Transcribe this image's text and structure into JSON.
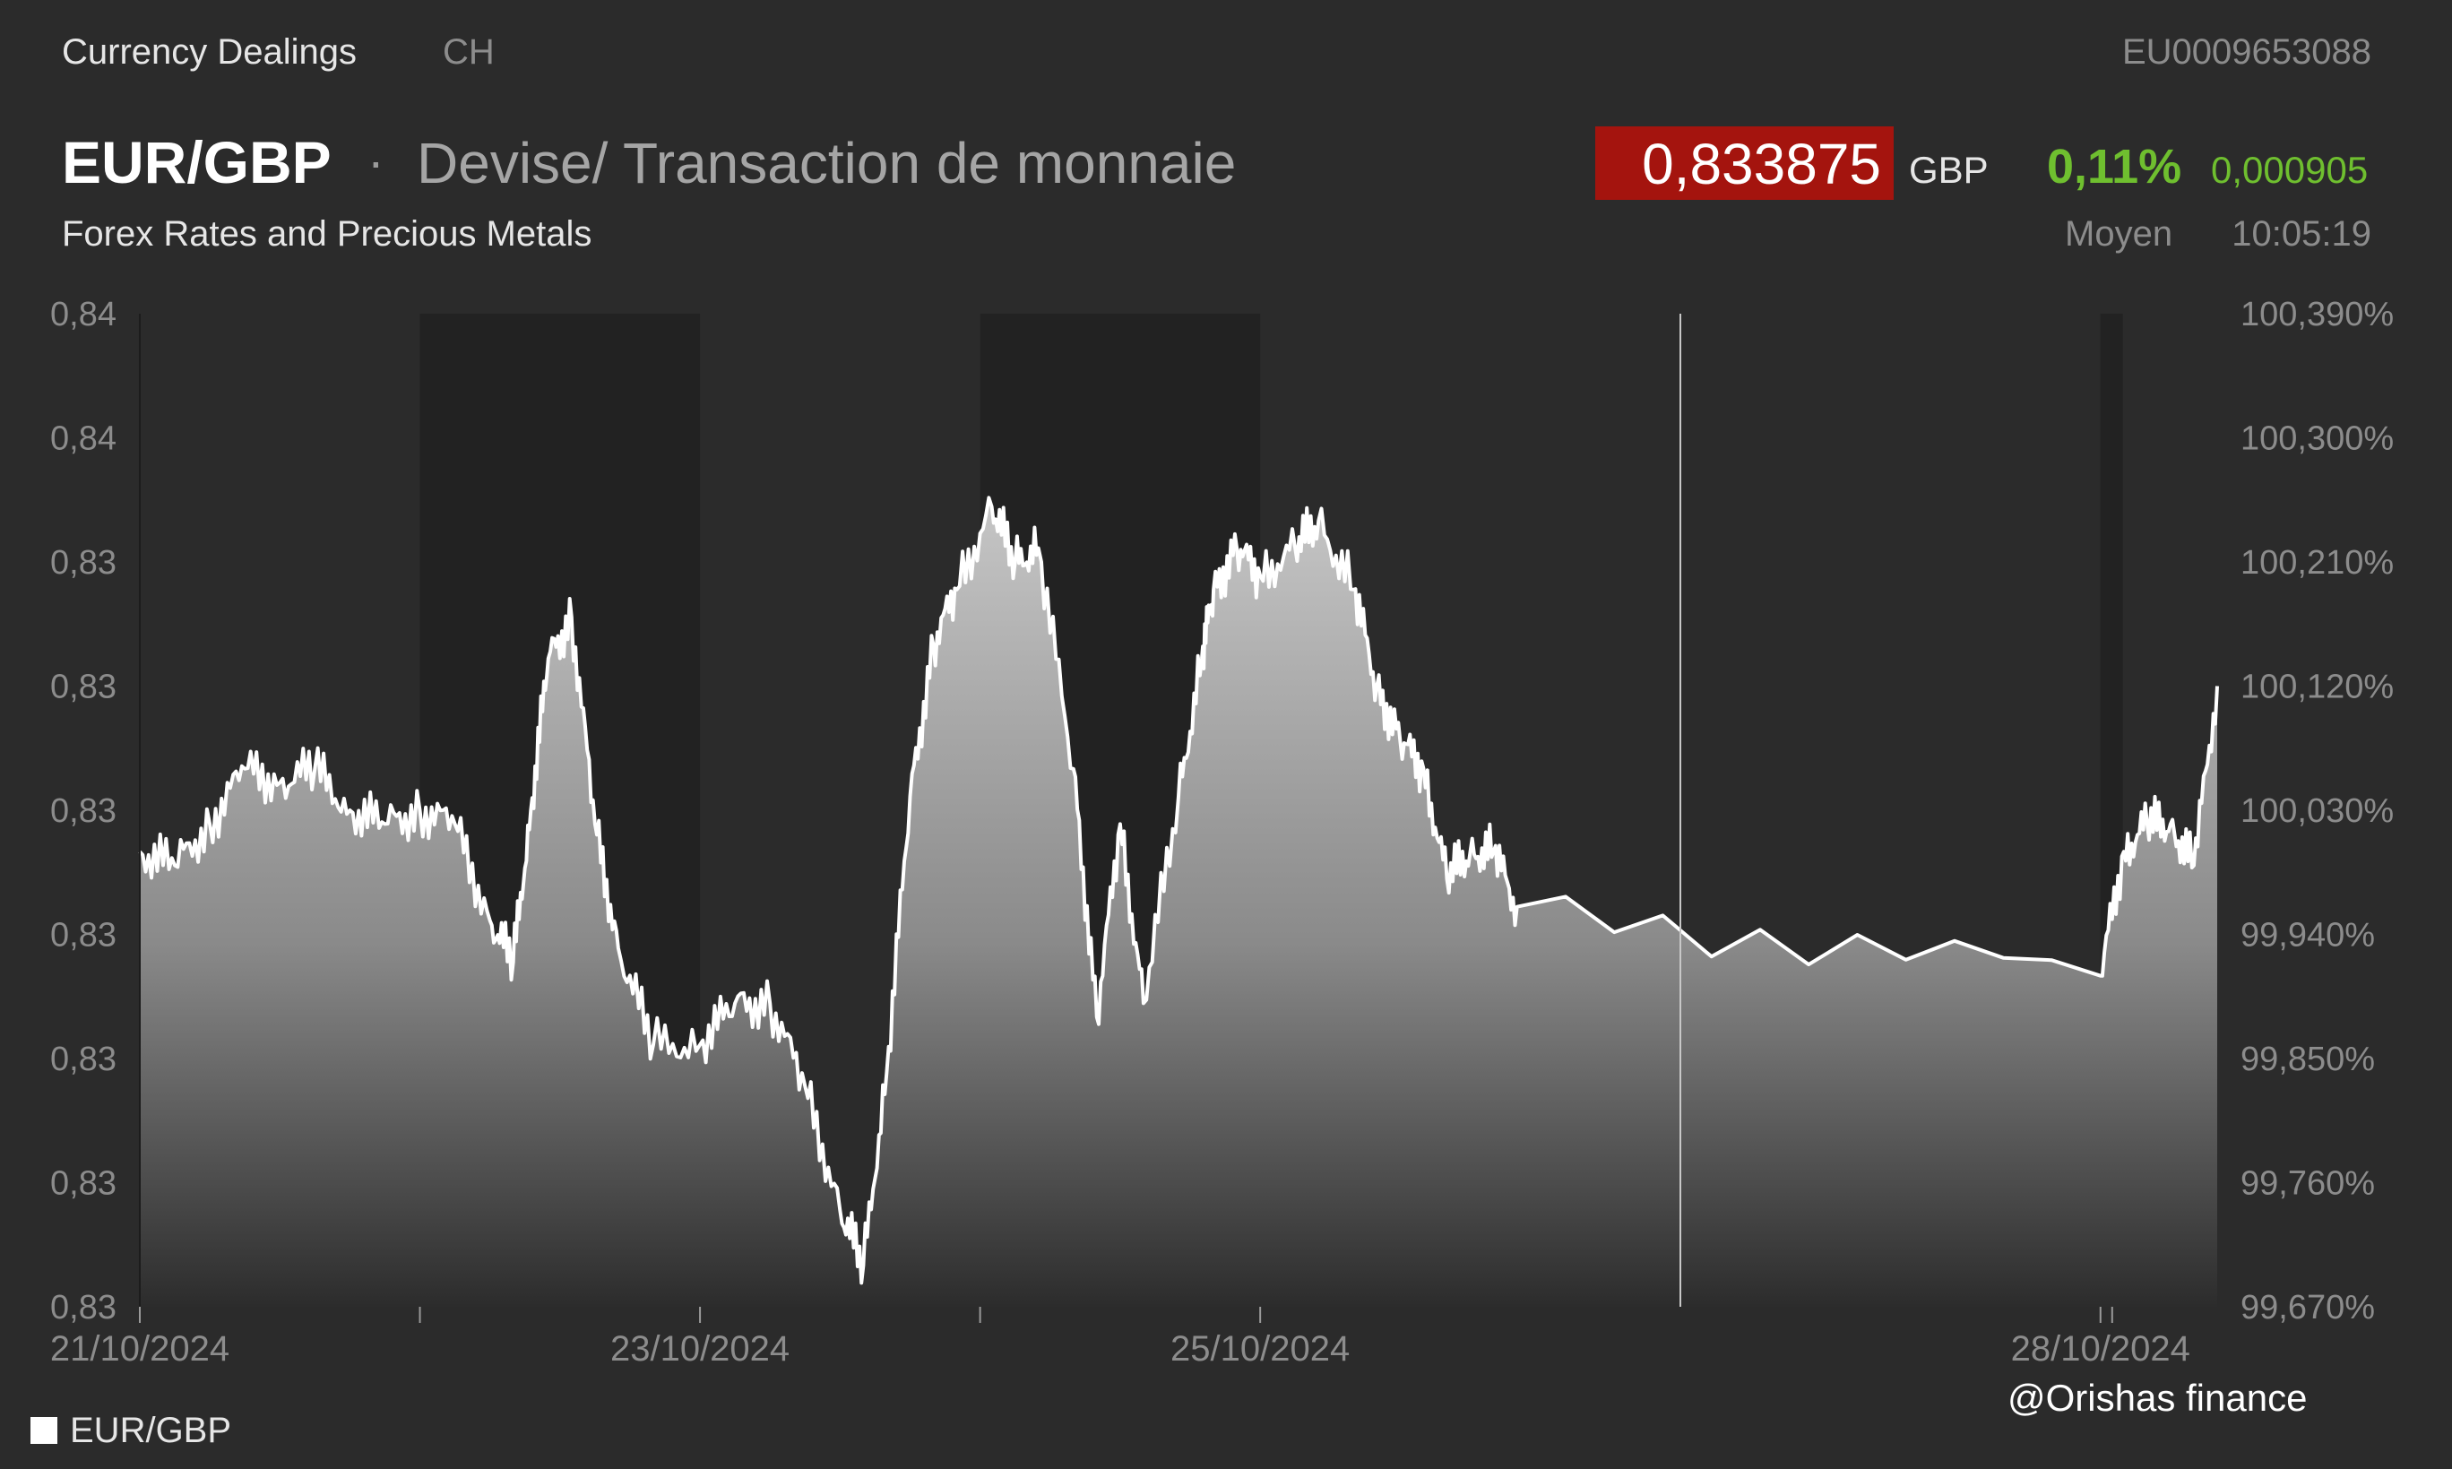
{
  "header": {
    "exchange": "Currency Dealings",
    "country": "CH",
    "isin": "EU0009653088",
    "instrument": "EUR/GBP",
    "separator": "·",
    "description": "Devise/ Transaction de monnaie",
    "subtitle": "Forex Rates and Precious Metals",
    "price": "0,833875",
    "currency": "GBP",
    "change_pct": "0,11%",
    "change_abs": "0,000905",
    "price_type": "Moyen",
    "time": "10:05:19"
  },
  "legend": {
    "label": "EUR/GBP"
  },
  "watermark": "@Orishas finance",
  "colors": {
    "background": "#2b2b2b",
    "shaded_band": "#222222",
    "price_badge": "#a4140e",
    "positive": "#6fbf2f",
    "line": "#ffffff"
  },
  "chart_data": {
    "type": "area",
    "title": "EUR/GBP",
    "grid": false,
    "legend_position": "bottom-left",
    "x_axis_labels": [
      "21/10/2024",
      "23/10/2024",
      "25/10/2024",
      "28/10/2024"
    ],
    "y_left_tick_labels": [
      "0,84",
      "0,84",
      "0,83",
      "0,83",
      "0,83",
      "0,83",
      "0,83",
      "0,83",
      "0,83"
    ],
    "y_right_tick_labels": [
      "100,390%",
      "100,300%",
      "100,210%",
      "100,120%",
      "100,030%",
      "99,940%",
      "99,850%",
      "99,760%",
      "99,670%"
    ],
    "ylim_percent": [
      99.67,
      100.39
    ],
    "series": [
      {
        "name": "EUR/GBP",
        "unit": "% of reference",
        "x": [
          "21/10/2024 00:00",
          "21/10/2024 03:00",
          "21/10/2024 06:00",
          "21/10/2024 09:00",
          "21/10/2024 12:00",
          "21/10/2024 15:00",
          "21/10/2024 18:00",
          "21/10/2024 21:00",
          "22/10/2024 00:00",
          "22/10/2024 03:00",
          "22/10/2024 06:00",
          "22/10/2024 08:00",
          "22/10/2024 09:30",
          "22/10/2024 11:00",
          "22/10/2024 13:00",
          "22/10/2024 15:00",
          "22/10/2024 17:00",
          "22/10/2024 20:00",
          "23/10/2024 00:00",
          "23/10/2024 03:00",
          "23/10/2024 06:00",
          "23/10/2024 09:00",
          "23/10/2024 12:00",
          "23/10/2024 14:00",
          "23/10/2024 16:00",
          "23/10/2024 18:00",
          "23/10/2024 20:00",
          "23/10/2024 22:00",
          "24/10/2024 01:00",
          "24/10/2024 03:00",
          "24/10/2024 05:00",
          "24/10/2024 08:00",
          "24/10/2024 10:00",
          "24/10/2024 12:00",
          "24/10/2024 14:00",
          "24/10/2024 17:00",
          "24/10/2024 19:00",
          "24/10/2024 20:00",
          "24/10/2024 22:00",
          "25/10/2024 00:00",
          "25/10/2024 03:00",
          "25/10/2024 05:00",
          "25/10/2024 08:00",
          "25/10/2024 10:00",
          "25/10/2024 12:00",
          "25/10/2024 14:00",
          "25/10/2024 16:00",
          "25/10/2024 18:00",
          "25/10/2024 20:00",
          "25/10/2024 22:00",
          "28/10/2024 00:00",
          "28/10/2024 02:00",
          "28/10/2024 04:00",
          "28/10/2024 06:00",
          "28/10/2024 08:00",
          "28/10/2024 10:00"
        ],
        "values": [
          100.0,
          99.99,
          100.02,
          100.06,
          100.05,
          100.06,
          100.03,
          100.02,
          100.03,
          100.02,
          99.95,
          99.92,
          100.03,
          100.14,
          100.17,
          100.02,
          99.93,
          99.86,
          99.86,
          99.89,
          99.89,
          99.83,
          99.74,
          99.7,
          99.84,
          100.04,
          100.15,
          100.19,
          100.25,
          100.21,
          100.22,
          100.06,
          99.88,
          100.02,
          99.89,
          100.04,
          100.14,
          100.19,
          100.22,
          100.2,
          100.22,
          100.24,
          100.19,
          100.12,
          100.08,
          100.06,
          99.98,
          100.0,
          100.0,
          99.96,
          99.91,
          100.0,
          100.02,
          100.02,
          99.99,
          100.12
        ]
      }
    ]
  }
}
